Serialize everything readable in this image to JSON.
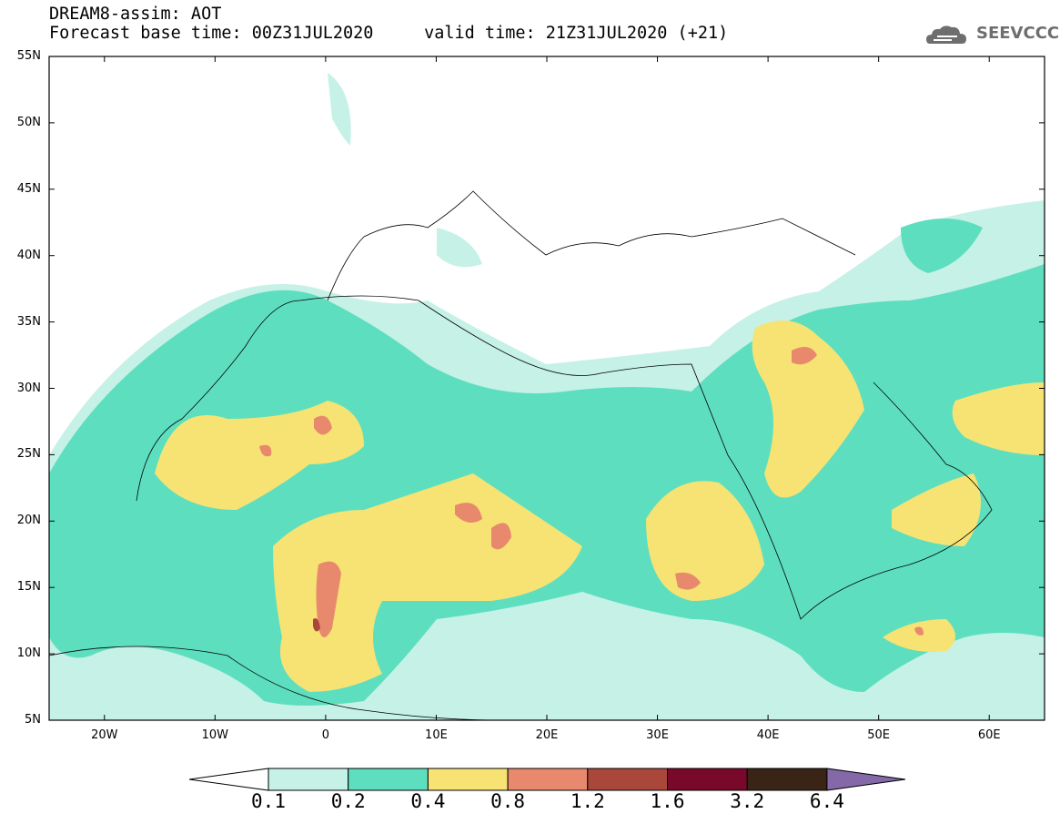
{
  "header": {
    "title": "DREAM8-assim: AOT",
    "subtitle": "Forecast base time: 00Z31JUL2020     valid time: 21Z31JUL2020 (+21)"
  },
  "logo": {
    "text": "SEEVCCC",
    "icon": "cloud-icon"
  },
  "map": {
    "lon_range": [
      -25,
      65
    ],
    "lat_range": [
      5,
      55
    ],
    "lat_ticks": [
      {
        "value": 55,
        "label": "55N"
      },
      {
        "value": 50,
        "label": "50N"
      },
      {
        "value": 45,
        "label": "45N"
      },
      {
        "value": 40,
        "label": "40N"
      },
      {
        "value": 35,
        "label": "35N"
      },
      {
        "value": 30,
        "label": "30N"
      },
      {
        "value": 25,
        "label": "25N"
      },
      {
        "value": 20,
        "label": "20N"
      },
      {
        "value": 15,
        "label": "15N"
      },
      {
        "value": 10,
        "label": "10N"
      },
      {
        "value": 5,
        "label": "5N"
      }
    ],
    "lon_ticks": [
      {
        "value": -20,
        "label": "20W"
      },
      {
        "value": -10,
        "label": "10W"
      },
      {
        "value": 0,
        "label": "0"
      },
      {
        "value": 10,
        "label": "10E"
      },
      {
        "value": 20,
        "label": "20E"
      },
      {
        "value": 30,
        "label": "30E"
      },
      {
        "value": 40,
        "label": "40E"
      },
      {
        "value": 50,
        "label": "50E"
      },
      {
        "value": 60,
        "label": "60E"
      }
    ]
  },
  "colorbar": {
    "boundaries": [
      "0.1",
      "0.2",
      "0.4",
      "0.8",
      "1.2",
      "1.6",
      "3.2",
      "6.4"
    ],
    "colors": [
      "#c6f1e7",
      "#5ddfbf",
      "#f6e373",
      "#e8886d",
      "#a9473a",
      "#79092b",
      "#3a2415",
      "#8468a8"
    ]
  }
}
